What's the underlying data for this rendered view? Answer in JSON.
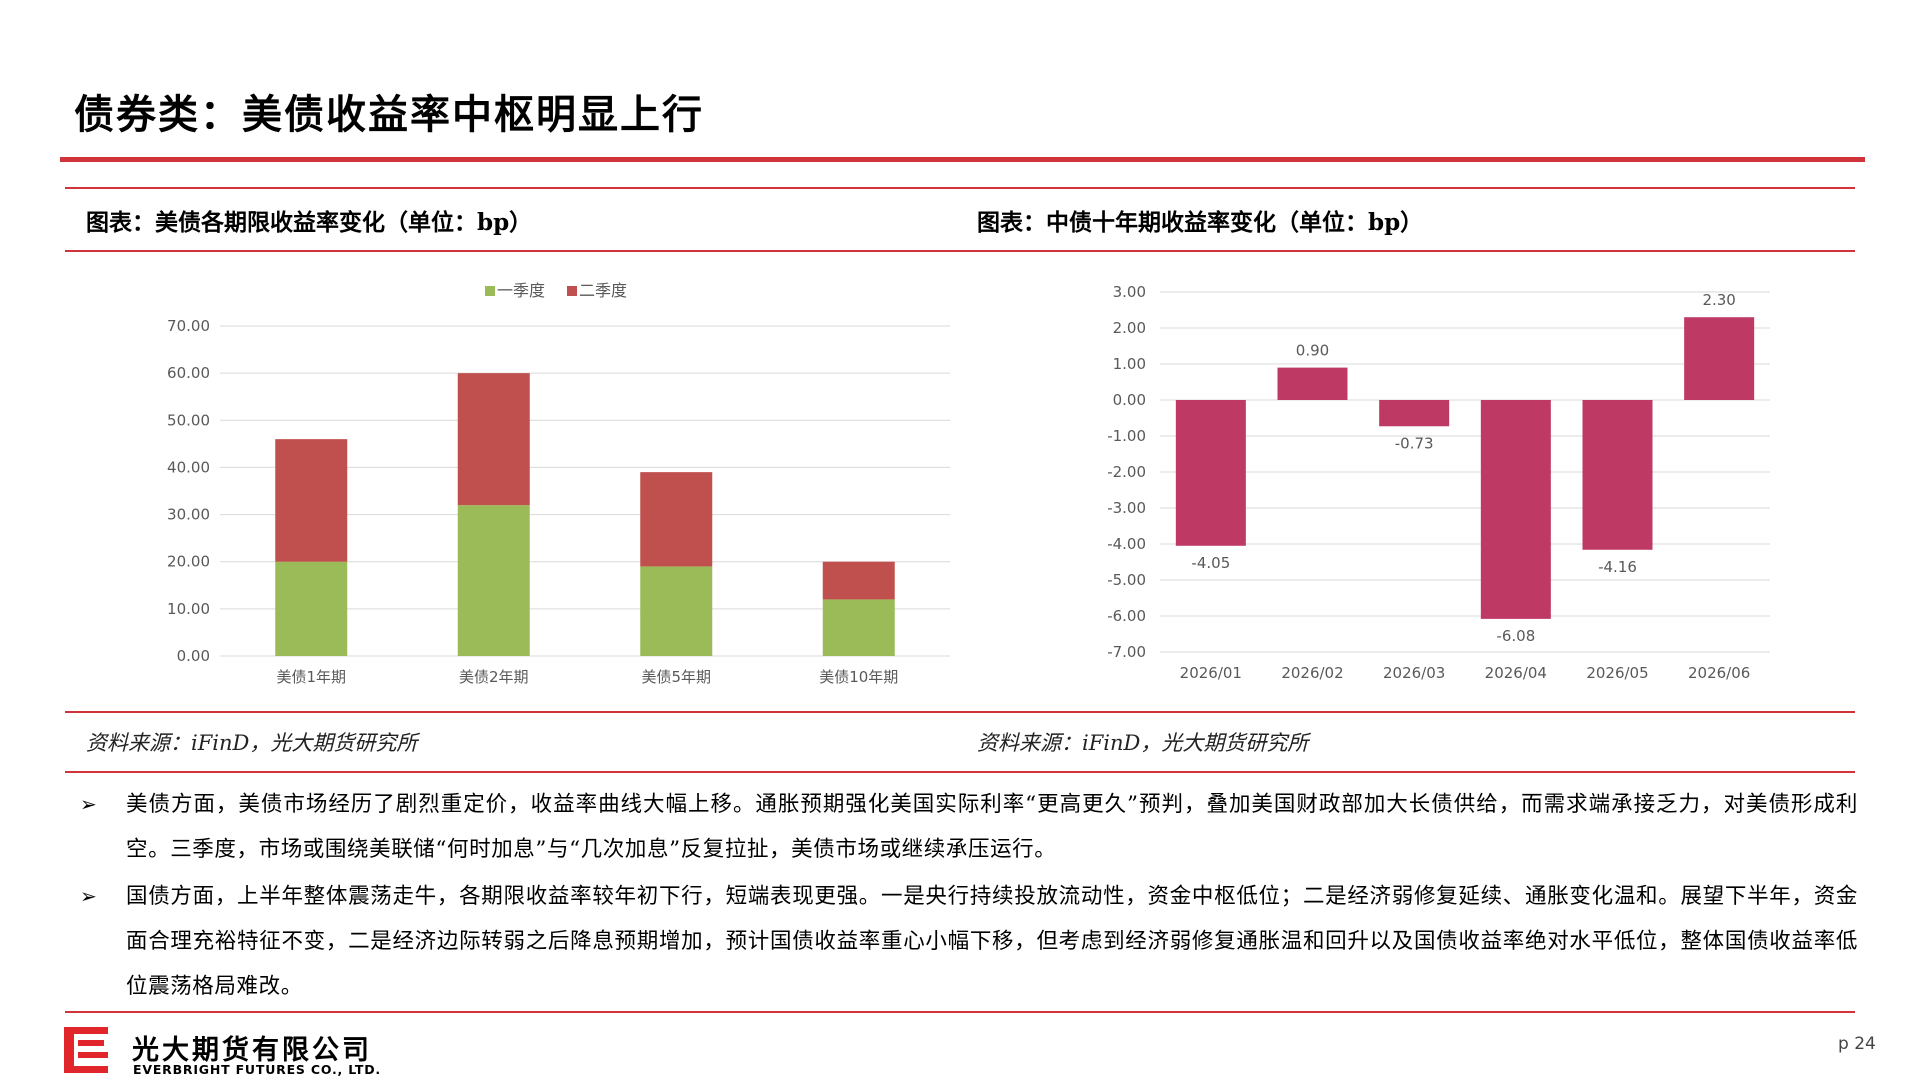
{
  "header": {
    "title": "债券类：美债收益率中枢明显上行"
  },
  "left_panel": {
    "title": "图表：美债各期限收益率变化（单位：bp）",
    "source": "资料来源：iFinD，光大期货研究所"
  },
  "right_panel": {
    "title": "图表：中债十年期收益率变化（单位：bp）",
    "source": "资料来源：iFinD，光大期货研究所"
  },
  "chart_data": [
    {
      "type": "bar",
      "stacked": true,
      "categories": [
        "美债1年期",
        "美债2年期",
        "美债5年期",
        "美债10年期"
      ],
      "series": [
        {
          "name": "一季度",
          "values": [
            20,
            32,
            19,
            12
          ],
          "color": "#9bbb59"
        },
        {
          "name": "二季度",
          "values": [
            26,
            28,
            20,
            8
          ],
          "color": "#c0504d"
        }
      ],
      "y_ticks": [
        "0.00",
        "10.00",
        "20.00",
        "30.00",
        "40.00",
        "50.00",
        "60.00",
        "70.00"
      ],
      "ylim": [
        0,
        70
      ],
      "grid": true,
      "legend": "top-center"
    },
    {
      "type": "bar",
      "categories": [
        "2026/01",
        "2026/02",
        "2026/03",
        "2026/04",
        "2026/05",
        "2026/06"
      ],
      "values": [
        -4.05,
        0.9,
        -0.73,
        -6.08,
        -4.16,
        2.3
      ],
      "labels": [
        "-4.05",
        "0.90",
        "-0.73",
        "-6.08",
        "-4.16",
        "2.30"
      ],
      "color": "#be3a65",
      "y_ticks": [
        "3.00",
        "2.00",
        "1.00",
        "0.00",
        "-1.00",
        "-2.00",
        "-3.00",
        "-4.00",
        "-5.00",
        "-6.00",
        "-7.00"
      ],
      "ylim": [
        -7,
        3
      ],
      "grid": true
    }
  ],
  "bullets": [
    "美债方面，美债市场经历了剧烈重定价，收益率曲线大幅上移。通胀预期强化美国实际利率“更高更久”预判，叠加美国财政部加大长债供给，而需求端承接乏力，对美债形成利空。三季度，市场或围绕美联储“何时加息”与“几次加息”反复拉扯，美债市场或继续承压运行。",
    "国债方面，上半年整体震荡走牛，各期限收益率较年初下行，短端表现更强。一是央行持续投放流动性，资金中枢低位；二是经济弱修复延续、通胀变化温和。展望下半年，资金面合理充裕特征不变，二是经济边际转弱之后降息预期增加，预计国债收益率重心小幅下移，但考虑到经济弱修复通胀温和回升以及国债收益率绝对水平低位，整体国债收益率低位震荡格局难改。"
  ],
  "footer": {
    "bullet_mark": "➢",
    "company_cn": "光大期货有限公司",
    "company_en": "EVERBRIGHT FUTURES CO., LTD.",
    "page": "p 24"
  }
}
